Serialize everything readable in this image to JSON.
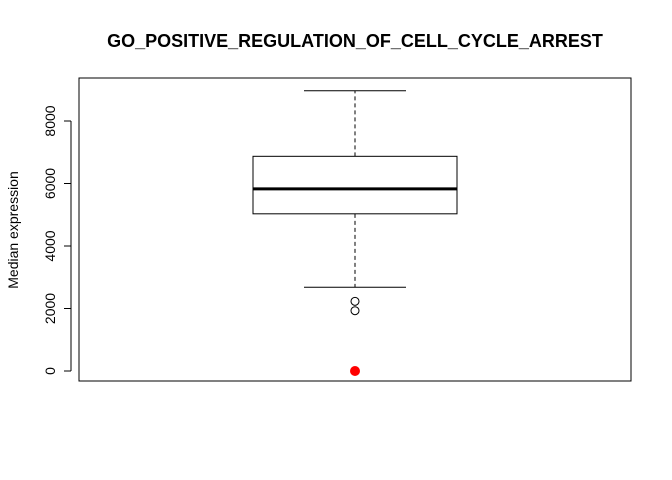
{
  "chart_data": {
    "type": "boxplot",
    "title": "GO_POSITIVE_REGULATION_OF_CELL_CYCLE_ARREST",
    "ylabel": "Median expression",
    "xlabel": "",
    "ylim": [
      0,
      9000
    ],
    "yticks": [
      0,
      2000,
      4000,
      6000,
      8000
    ],
    "grid": false,
    "box": {
      "whisker_low": 2680,
      "q1": 5030,
      "median": 5830,
      "q3": 6870,
      "whisker_high": 8970
    },
    "outliers": [
      2230,
      1930
    ],
    "highlight_point": {
      "value": 0,
      "color": "#ff0000"
    }
  }
}
